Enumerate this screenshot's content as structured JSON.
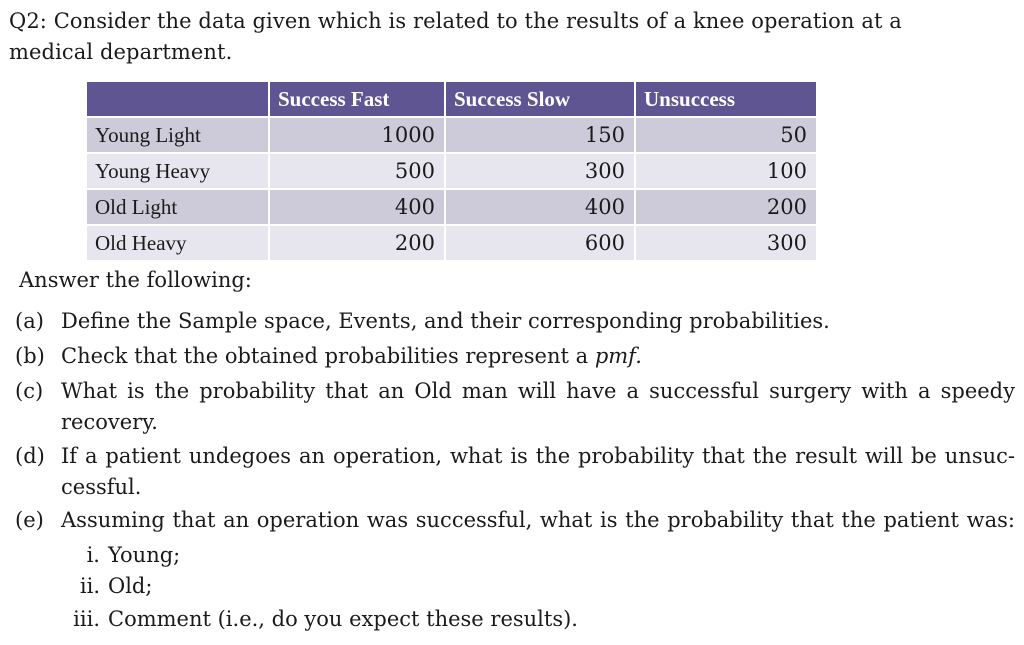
{
  "intro": {
    "line1": "Q2: Consider the data given which is related to the results of a knee operation at a",
    "line2": "medical department."
  },
  "table": {
    "headers": [
      "",
      "Success Fast",
      "Success Slow",
      "Unsuccess"
    ],
    "rows": [
      {
        "label": "Young Light",
        "values": [
          "1000",
          "150",
          "50"
        ]
      },
      {
        "label": "Young Heavy",
        "values": [
          "500",
          "300",
          "100"
        ]
      },
      {
        "label": "Old Light",
        "values": [
          "400",
          "400",
          "200"
        ]
      },
      {
        "label": "Old Heavy",
        "values": [
          "200",
          "600",
          "300"
        ]
      }
    ],
    "colors": {
      "header_bg": "#5e5592",
      "row_dark": "#cdcbd9",
      "row_light": "#e7e6ee"
    }
  },
  "answer_title": "Answer the following:",
  "questions": {
    "a": {
      "label": "(a)",
      "text": "Define the Sample space, Events, and their corresponding probabilities."
    },
    "b": {
      "label": "(b)",
      "text_before": "Check that the obtained probabilities represent a ",
      "text_italic": "pmf.",
      "text_after": ""
    },
    "c": {
      "label": "(c)",
      "line1": "What is the probability that an Old man will have a successful surgery with a speedy",
      "line2": "recovery."
    },
    "d": {
      "label": "(d)",
      "line1": "If a patient undegoes an operation, what is the probability that the result will be unsuc-",
      "line2": "cessful."
    },
    "e": {
      "label": "(e)",
      "text": "Assuming that an operation was successful, what is the probability that the patient was:",
      "subs": [
        {
          "label": "i.",
          "text": "Young;"
        },
        {
          "label": "ii.",
          "text": "Old;"
        },
        {
          "label": "iii.",
          "text": "Comment (i.e., do you expect these results)."
        }
      ]
    }
  }
}
